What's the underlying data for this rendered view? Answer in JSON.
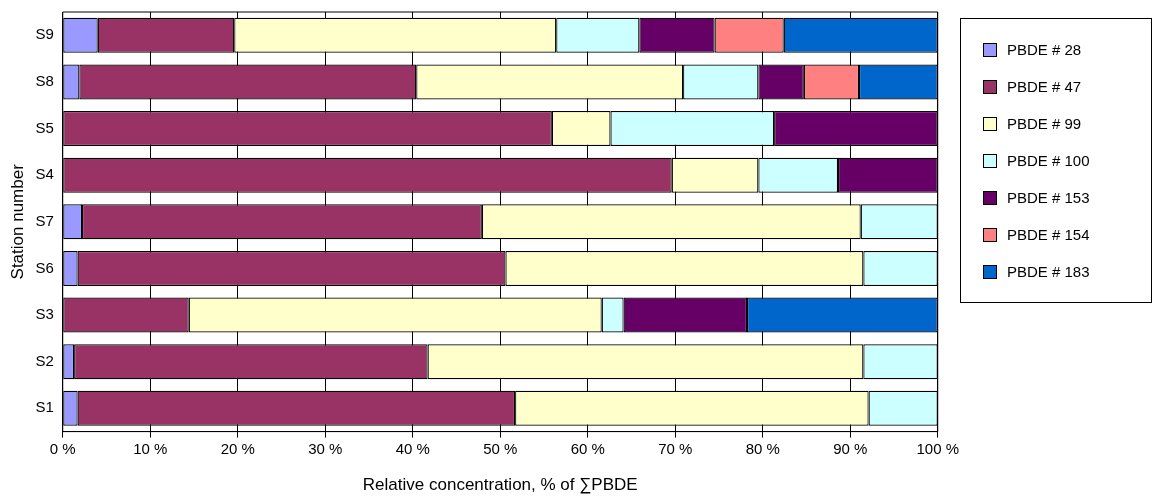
{
  "chart_data": {
    "type": "bar",
    "orientation": "horizontal",
    "stacked": true,
    "xlabel": "Relative concentration, % of ∑PBDE",
    "ylabel": "Station number",
    "categories": [
      "S9",
      "S8",
      "S5",
      "S4",
      "S7",
      "S6",
      "S3",
      "S2",
      "S1"
    ],
    "series": [
      {
        "name": "PBDE # 28",
        "color": "#9999ff",
        "values": [
          4.0,
          1.9,
          0,
          0,
          2.2,
          1.7,
          0,
          1.3,
          1.7
        ]
      },
      {
        "name": "PBDE # 47",
        "color": "#993366",
        "values": [
          15.6,
          38.5,
          55.9,
          69.6,
          45.7,
          48.9,
          14.4,
          40.4,
          50.0
        ]
      },
      {
        "name": "PBDE # 99",
        "color": "#ffffcc",
        "values": [
          36.8,
          30.5,
          6.7,
          9.9,
          43.3,
          40.9,
          47.2,
          49.8,
          40.4
        ]
      },
      {
        "name": "PBDE # 100",
        "color": "#ccffff",
        "values": [
          9.5,
          8.6,
          18.7,
          9.1,
          8.8,
          8.5,
          2.5,
          8.5,
          7.9
        ]
      },
      {
        "name": "PBDE # 153",
        "color": "#660066",
        "values": [
          8.6,
          5.2,
          18.7,
          11.4,
          0,
          0,
          14.1,
          0,
          0
        ]
      },
      {
        "name": "PBDE # 154",
        "color": "#ff8080",
        "values": [
          7.9,
          6.3,
          0,
          0,
          0,
          0,
          0,
          0,
          0
        ]
      },
      {
        "name": "PBDE # 183",
        "color": "#0066cc",
        "values": [
          17.6,
          9.0,
          0,
          0,
          0,
          0,
          21.8,
          0,
          0
        ]
      }
    ],
    "xlim": [
      0,
      100
    ],
    "xticks": [
      {
        "value": 0,
        "label": "0 %"
      },
      {
        "value": 10,
        "label": "10 %"
      },
      {
        "value": 20,
        "label": "20 %"
      },
      {
        "value": 30,
        "label": "30 %"
      },
      {
        "value": 40,
        "label": "40 %"
      },
      {
        "value": 50,
        "label": "50 %"
      },
      {
        "value": 60,
        "label": "60 %"
      },
      {
        "value": 70,
        "label": "70 %"
      },
      {
        "value": 80,
        "label": "80 %"
      },
      {
        "value": 90,
        "label": "90 %"
      },
      {
        "value": 100,
        "label": "100 %"
      }
    ],
    "grid": "x",
    "legend": "right"
  }
}
